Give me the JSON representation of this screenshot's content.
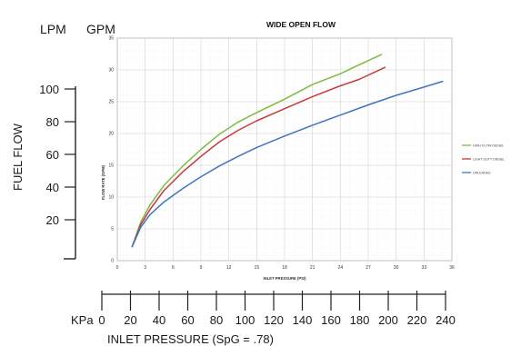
{
  "chart_data": {
    "type": "line",
    "title": "WIDE OPEN FLOW",
    "xlabel": "INLET PRESSURE (PSI)",
    "ylabel": "FLOW RATE (GPM)",
    "xlim": [
      0,
      36
    ],
    "ylim": [
      0,
      35
    ],
    "x_ticks": [
      "0",
      "3",
      "6",
      "9",
      "12",
      "15",
      "18",
      "21",
      "24",
      "27",
      "30",
      "33",
      "36"
    ],
    "y_ticks": [
      "0",
      "5",
      "10",
      "15",
      "20",
      "25",
      "30",
      "35"
    ],
    "grid": true,
    "legend_position": "right",
    "series": [
      {
        "name": "HIGH FLOW DIESEL",
        "color": "#7dbb42",
        "x": [
          1.6,
          2.5,
          3.5,
          5.0,
          7.0,
          9.0,
          11.0,
          13.0,
          15.0,
          18.0,
          21.0,
          24.0,
          26.0,
          28.4
        ],
        "y": [
          2.2,
          6.0,
          8.7,
          11.8,
          14.8,
          17.5,
          19.9,
          21.8,
          23.3,
          25.4,
          27.7,
          29.4,
          30.8,
          32.4
        ]
      },
      {
        "name": "LIGHT DUTY DIESEL",
        "color": "#c8393a",
        "x": [
          1.6,
          2.5,
          3.5,
          5.0,
          7.0,
          9.0,
          11.0,
          13.0,
          15.0,
          18.0,
          21.0,
          24.0,
          26.0,
          28.8
        ],
        "y": [
          2.2,
          5.6,
          8.0,
          11.0,
          13.9,
          16.4,
          18.7,
          20.5,
          22.0,
          23.9,
          25.8,
          27.5,
          28.5,
          30.4
        ]
      },
      {
        "name": "UNLEADED",
        "color": "#3d75c4",
        "x": [
          1.6,
          2.5,
          3.5,
          5.0,
          7.0,
          9.0,
          11.0,
          13.0,
          15.0,
          18.0,
          21.0,
          24.0,
          27.0,
          30.0,
          33.0,
          35.0
        ],
        "y": [
          2.2,
          5.2,
          7.2,
          9.2,
          11.3,
          13.2,
          14.9,
          16.4,
          17.8,
          19.6,
          21.3,
          22.9,
          24.5,
          26.0,
          27.3,
          28.2
        ]
      }
    ],
    "outer_axes": {
      "left_header_lpm": "LPM",
      "left_header_gpm": "GPM",
      "left_label": "FUEL FLOW",
      "lpm_ticks": [
        "100",
        "80",
        "60",
        "40",
        "20"
      ],
      "bottom_prefix": "KPa",
      "kpa_ticks": [
        "0",
        "20",
        "40",
        "60",
        "80",
        "100",
        "120",
        "140",
        "160",
        "180",
        "200",
        "220",
        "240"
      ],
      "bottom_label": "INLET PRESSURE (SpG = .78)"
    }
  }
}
